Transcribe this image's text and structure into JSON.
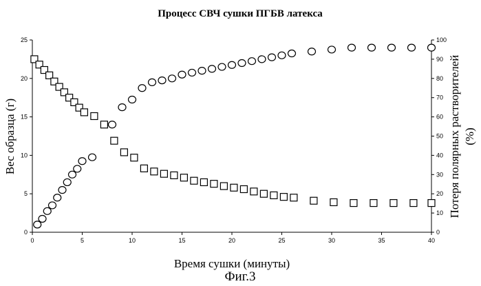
{
  "chart_data": {
    "type": "scatter",
    "title": "Процесс СВЧ сушки ПГБВ латекса",
    "xlabel": "Время сушки (минуты)",
    "ylabel": "Вес образца (г)",
    "ylabel_right": "Потеря полярных растворителей (%)",
    "ylabel_right_line1": "Потеря полярных растворителей",
    "ylabel_right_line2": "(%)",
    "caption": "Фиг.3",
    "xlim": [
      0,
      40
    ],
    "ylim": [
      0,
      25
    ],
    "ylim_right": [
      0,
      100
    ],
    "xticks": [
      "0",
      "5",
      "10",
      "15",
      "20",
      "25",
      "30",
      "35",
      "40"
    ],
    "yticks": [
      "0",
      "5",
      "10",
      "15",
      "20",
      "25"
    ],
    "yticks_right": [
      "0",
      "10",
      "20",
      "30",
      "40",
      "50",
      "60",
      "70",
      "80",
      "90",
      "100"
    ],
    "series": [
      {
        "marker": "square",
        "axis": "left",
        "x": [
          0.2,
          0.7,
          1.2,
          1.7,
          2.2,
          2.7,
          3.2,
          3.7,
          4.2,
          4.7,
          5.2,
          6.2,
          7.2,
          8.2,
          9.2,
          10.2,
          11.2,
          12.2,
          13.2,
          14.2,
          15.2,
          16.2,
          17.2,
          18.2,
          19.2,
          20.2,
          21.2,
          22.2,
          23.2,
          24.2,
          25.2,
          26.2,
          28.2,
          30.2,
          32.2,
          34.2,
          36.2,
          38.2,
          40.0
        ],
        "y": [
          22.5,
          21.8,
          21.1,
          20.4,
          19.6,
          18.9,
          18.2,
          17.5,
          16.9,
          16.2,
          15.6,
          15.1,
          14.0,
          11.9,
          10.4,
          9.7,
          8.3,
          7.9,
          7.6,
          7.4,
          7.1,
          6.7,
          6.5,
          6.3,
          6.0,
          5.8,
          5.6,
          5.3,
          5.0,
          4.8,
          4.6,
          4.5,
          4.1,
          3.9,
          3.8,
          3.8,
          3.8,
          3.8,
          3.8
        ]
      },
      {
        "marker": "circle",
        "axis": "right",
        "x": [
          0.5,
          1.0,
          1.5,
          2.0,
          2.5,
          3.0,
          3.5,
          4.0,
          4.5,
          5.0,
          6.0,
          8.0,
          9.0,
          10.0,
          11.0,
          12.0,
          13.0,
          14.0,
          15.0,
          16.0,
          17.0,
          18.0,
          19.0,
          20.0,
          21.0,
          22.0,
          23.0,
          24.0,
          25.0,
          26.0,
          28.0,
          30.0,
          32.0,
          34.0,
          36.0,
          38.0,
          40.0
        ],
        "y": [
          4,
          7,
          11,
          14,
          18,
          22,
          26,
          30,
          33,
          37,
          39,
          56,
          65,
          69,
          75,
          78,
          79,
          80,
          82,
          83,
          84,
          85,
          86,
          87,
          88,
          89,
          90,
          91,
          92,
          93,
          94,
          95,
          96,
          96,
          96,
          96,
          96
        ]
      }
    ]
  }
}
